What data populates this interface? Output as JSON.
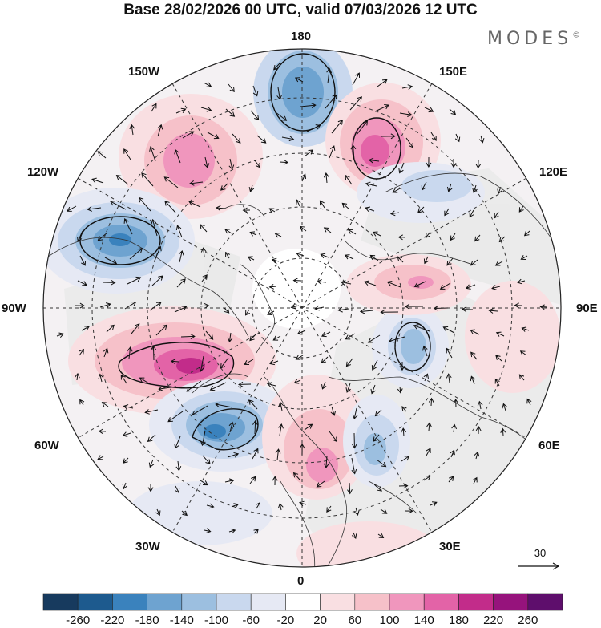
{
  "header": {
    "title": "Base 28/02/2026 00 UTC, valid 07/03/2026 12 UTC",
    "brand": "MODES",
    "brand_mark": "©"
  },
  "map": {
    "projection": "north-polar-stereographic",
    "longitude_labels": {
      "top": "180",
      "upper_left": "150W",
      "upper_right": "150E",
      "mid_upper_left": "120W",
      "mid_upper_right": "120E",
      "left": "90W",
      "right": "90E",
      "mid_lower_left": "60W",
      "mid_lower_right": "60E",
      "lower_left": "30W",
      "lower_right": "30E",
      "bottom": "0"
    },
    "reference_vector": "30",
    "anomaly_centers": [
      {
        "sign": "negative",
        "near": "180",
        "strength": -140
      },
      {
        "sign": "positive",
        "near": "150E",
        "strength": 150
      },
      {
        "sign": "positive",
        "near": "150W",
        "strength": 130
      },
      {
        "sign": "negative",
        "near": "120W",
        "strength": -170
      },
      {
        "sign": "positive",
        "near": "75W",
        "strength": 200
      },
      {
        "sign": "negative",
        "near": "45W",
        "strength": -170
      },
      {
        "sign": "positive",
        "near": "5E",
        "strength": 120
      },
      {
        "sign": "negative",
        "near": "45E",
        "strength": -110
      },
      {
        "sign": "negative",
        "near": "95E",
        "strength": -110
      },
      {
        "sign": "positive",
        "near": "110E",
        "strength": 100
      }
    ]
  },
  "legend": {
    "colors": [
      "#173a5e",
      "#1d5a8e",
      "#3a82bd",
      "#6ea3d0",
      "#9cbfe0",
      "#c9d8ee",
      "#e6e9f4",
      "#ffffff",
      "#f9dfe2",
      "#f6c1c9",
      "#f096bd",
      "#e363a7",
      "#c22c8a",
      "#96137c",
      "#5e0e6c"
    ],
    "ticks": [
      "-260",
      "-220",
      "-180",
      "-140",
      "-100",
      "-60",
      "-20",
      "20",
      "60",
      "100",
      "140",
      "180",
      "220",
      "260"
    ]
  }
}
